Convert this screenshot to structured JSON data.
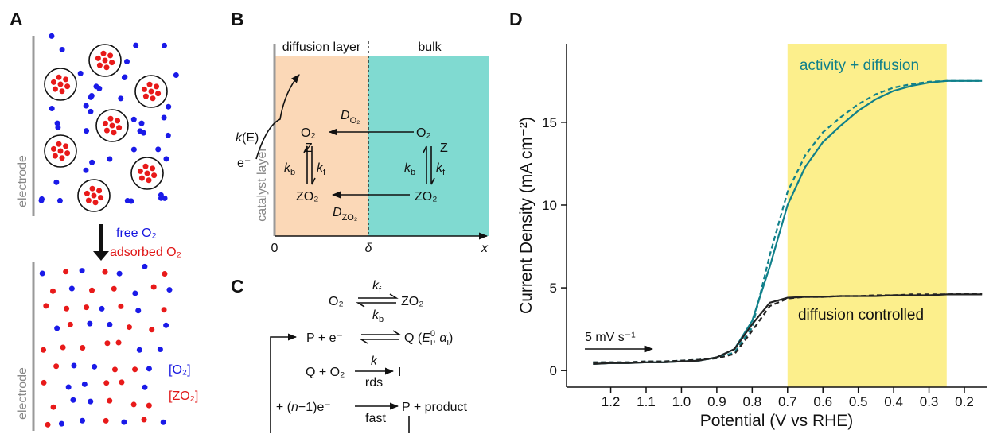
{
  "figure": {
    "panel_labels": [
      "A",
      "B",
      "C",
      "D"
    ]
  },
  "panel_a": {
    "electrode_top": "electrode",
    "free": "free O₂",
    "adsorbed": "adsorbed O₂",
    "electrode_bottom": "electrode",
    "free_conc": "[O₂]",
    "adsorbed_conc": "[ZO₂]"
  },
  "panel_b": {
    "diffusion_layer": "diffusion layer",
    "bulk": "bulk",
    "rate": {
      "base": "k",
      "rest": "(E)"
    },
    "electron": "e⁻",
    "d_o2": {
      "base": "D",
      "sub": "O₂"
    },
    "o2_left": "O₂",
    "z_left": "Z",
    "kb_left": {
      "base": "k",
      "sub": "b"
    },
    "kf_left": {
      "base": "k",
      "sub": "f"
    },
    "zo2_left": "ZO₂",
    "d_zo2": {
      "base": "D",
      "sub": "ZO₂"
    },
    "o2_right": "O₂",
    "z_right": "Z",
    "kb_right": {
      "base": "k",
      "sub": "b"
    },
    "kf_right": {
      "base": "k",
      "sub": "f"
    },
    "zo2_right": "ZO₂",
    "catalyst_layer": "catalyst layer",
    "origin": "0",
    "delta": "δ",
    "x": "x"
  },
  "panel_c": {
    "eq1": {
      "left": "O₂",
      "right": "ZO₂",
      "kf": {
        "base": "k",
        "sub": "f"
      },
      "kb": {
        "base": "k",
        "sub": "b"
      }
    },
    "eq2": {
      "left": "P + e⁻",
      "right": "Q (",
      "e": {
        "base": "E",
        "sub": "i",
        "sup": "0"
      },
      "sep": ", ",
      "alpha": {
        "base": "α",
        "sub": "i"
      },
      "close": ")"
    },
    "eq3": {
      "left": "Q + O₂",
      "right": "I",
      "k": "k",
      "under": "rds"
    },
    "eq4": {
      "left": "I + (",
      "n": "n",
      "mid": "−1)e⁻",
      "right": "P + product",
      "under": "fast"
    }
  },
  "chart_data": {
    "type": "line",
    "xlabel": "Potential (V vs RHE)",
    "ylabel": "Current Density (mA cm⁻²)",
    "x": [
      1.25,
      1.2,
      1.15,
      1.1,
      1.05,
      1.0,
      0.95,
      0.9,
      0.85,
      0.8,
      0.75,
      0.7,
      0.65,
      0.6,
      0.55,
      0.5,
      0.45,
      0.4,
      0.35,
      0.3,
      0.25,
      0.2,
      0.15
    ],
    "series": [
      {
        "color": "#10808a",
        "dashed": false,
        "values": [
          0.4,
          0.45,
          0.45,
          0.5,
          0.5,
          0.55,
          0.6,
          0.8,
          1.3,
          3.0,
          6.3,
          10.0,
          12.3,
          13.8,
          14.8,
          15.7,
          16.4,
          16.9,
          17.2,
          17.4,
          17.5,
          17.5,
          17.5
        ]
      },
      {
        "color": "#10808a",
        "dashed": true,
        "values": [
          0.5,
          0.5,
          0.5,
          0.55,
          0.55,
          0.6,
          0.65,
          0.75,
          1.1,
          2.6,
          7.0,
          10.8,
          13.0,
          14.4,
          15.3,
          16.1,
          16.7,
          17.1,
          17.3,
          17.45,
          17.5,
          17.5,
          17.5
        ]
      },
      {
        "color": "#222222",
        "dashed": false,
        "values": [
          0.4,
          0.45,
          0.45,
          0.5,
          0.5,
          0.55,
          0.6,
          0.8,
          1.3,
          2.8,
          4.1,
          4.4,
          4.45,
          4.45,
          4.5,
          4.5,
          4.5,
          4.55,
          4.55,
          4.55,
          4.6,
          4.6,
          4.6
        ]
      },
      {
        "color": "#222222",
        "dashed": true,
        "values": [
          0.5,
          0.5,
          0.5,
          0.55,
          0.55,
          0.6,
          0.65,
          0.75,
          1.0,
          2.4,
          3.9,
          4.35,
          4.45,
          4.45,
          4.5,
          4.5,
          4.55,
          4.55,
          4.6,
          4.6,
          4.6,
          4.65,
          4.65
        ]
      }
    ],
    "xlim": [
      1.325,
      0.137
    ],
    "ylim": [
      -1,
      19.75
    ],
    "xticks": [
      1.2,
      1.1,
      {
        "value": 1,
        "label": "1.0"
      },
      0.9,
      0.8,
      0.7,
      0.6,
      0.5,
      0.4,
      0.3,
      0.2
    ],
    "yticks": [
      0,
      5,
      10,
      15
    ],
    "highlight": {
      "from": 0.7,
      "to": 0.25,
      "color": "#fcef8c"
    },
    "annotations": [
      {
        "text": "activity + diffusion",
        "color": "#10808a"
      },
      {
        "text": "diffusion controlled",
        "color": "#111111"
      },
      {
        "text": "5 mV s⁻¹",
        "color": "#111111"
      }
    ]
  }
}
